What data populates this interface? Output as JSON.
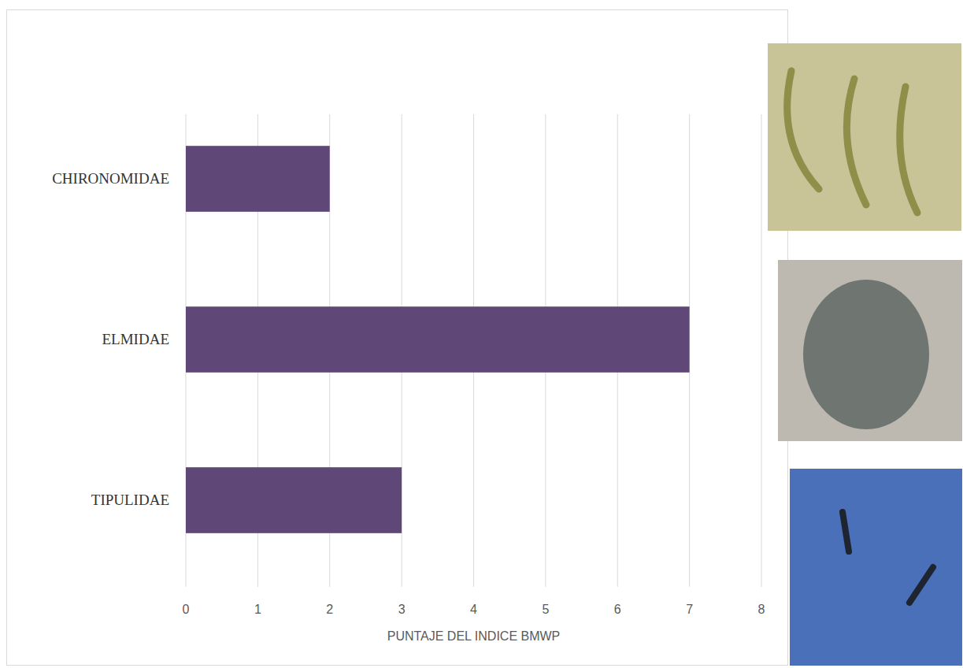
{
  "chart_data": {
    "type": "bar",
    "orientation": "horizontal",
    "categories": [
      "CHIRONOMIDAE",
      "ELMIDAE",
      "TIPULIDAE"
    ],
    "values": [
      2,
      7,
      3
    ],
    "color": "#5f4778",
    "x_label": "PUNTAJE DEL INDICE BMWP",
    "xlim": [
      0,
      8
    ],
    "xticks": [
      0,
      1,
      2,
      3,
      4,
      5,
      6,
      7,
      8
    ],
    "grid": true
  }
}
